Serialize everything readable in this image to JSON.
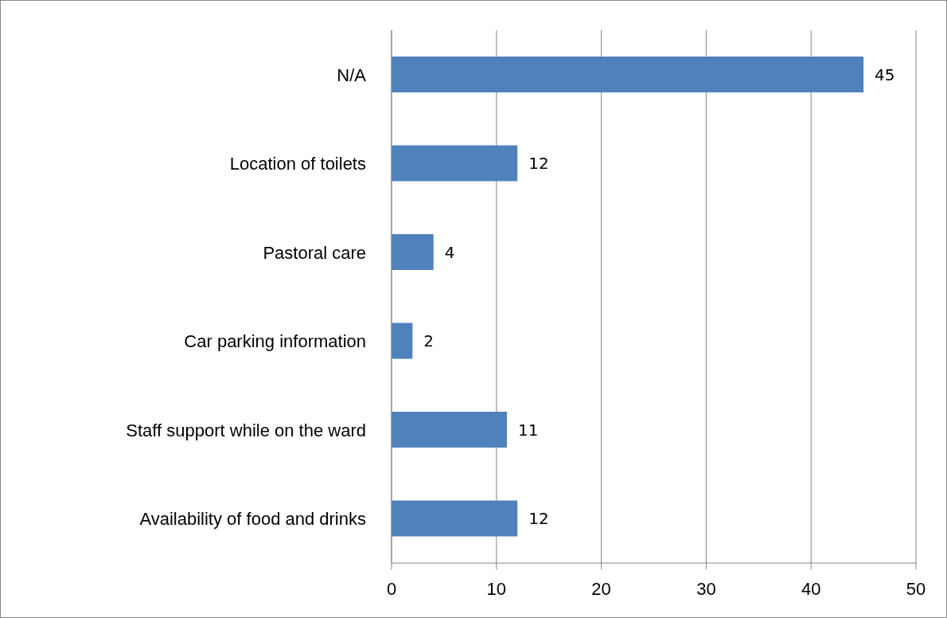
{
  "chart_data": {
    "type": "bar",
    "orientation": "horizontal",
    "categories": [
      "N/A",
      "Location of toilets",
      "Pastoral care",
      "Car parking information",
      "Staff support while on the ward",
      "Availability of food and drinks"
    ],
    "values": [
      45,
      12,
      4,
      2,
      11,
      12
    ],
    "color": "#4f81bd",
    "xlim": [
      0,
      50
    ],
    "xticks": [
      0,
      10,
      20,
      30,
      40,
      50
    ],
    "grid": "x",
    "data_labels": true
  }
}
